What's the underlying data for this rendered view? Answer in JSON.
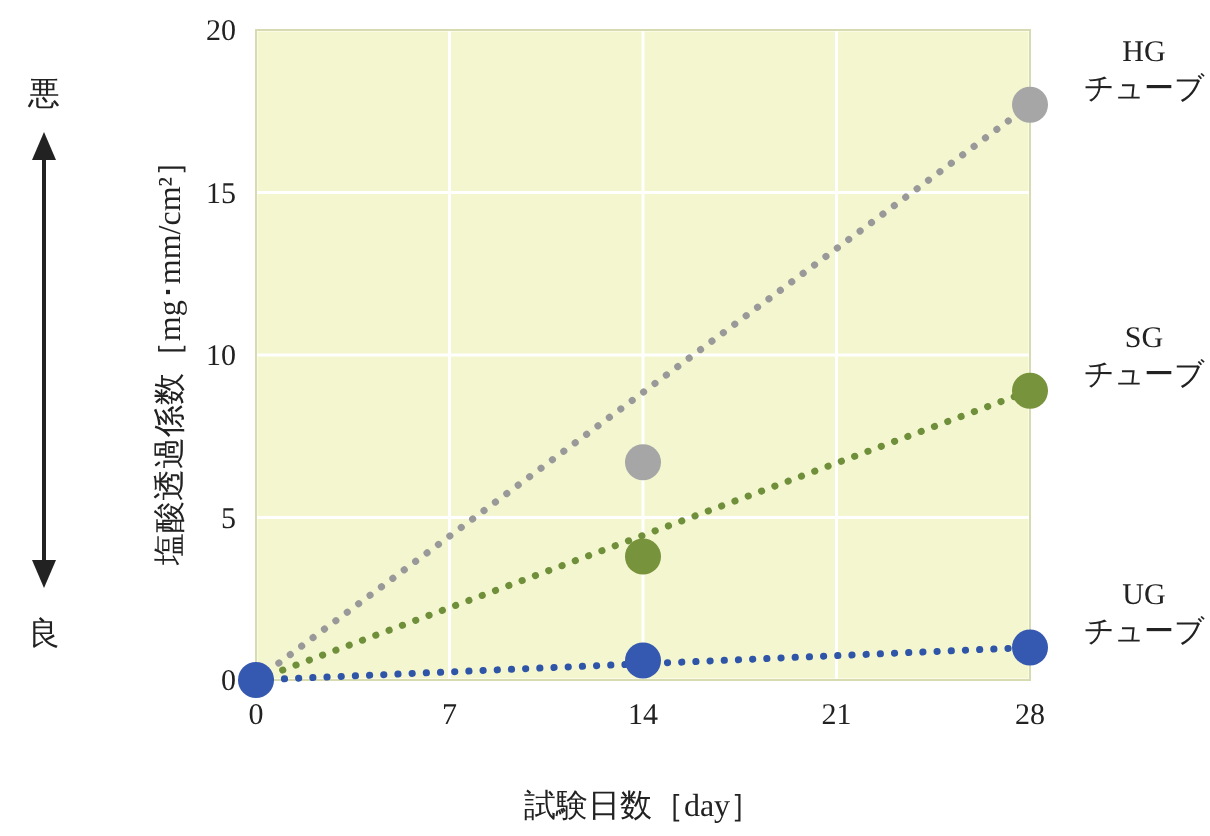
{
  "chart_data": {
    "type": "scatter",
    "xlabel": "試験日数［day］",
    "ylabel": "塩酸透過係数［mg･mm/cm²］",
    "xlim": [
      0,
      28
    ],
    "ylim": [
      0,
      20
    ],
    "xticks": [
      0,
      7,
      14,
      21,
      28
    ],
    "yticks": [
      0,
      5,
      10,
      15,
      20
    ],
    "grid": true,
    "annotations": [
      "悪",
      "良"
    ],
    "series": [
      {
        "type": "line",
        "line_style": "dotted",
        "color": "#999999",
        "x": [
          0,
          28
        ],
        "values": [
          0,
          17.7
        ]
      },
      {
        "type": "line",
        "line_style": "dotted",
        "color": "#6f8f3a",
        "x": [
          0,
          28
        ],
        "values": [
          0,
          8.9
        ]
      },
      {
        "type": "line",
        "line_style": "dotted",
        "color": "#2f55a8",
        "x": [
          0,
          28
        ],
        "values": [
          0,
          1.0
        ]
      },
      {
        "name": "HG\nチューブ",
        "marker": "circle",
        "color": "#a6a6a6",
        "x": [
          14,
          28
        ],
        "values": [
          6.7,
          17.7
        ]
      },
      {
        "name": "SG\nチューブ",
        "marker": "circle",
        "color": "#77933c",
        "x": [
          14,
          28
        ],
        "values": [
          3.8,
          8.9
        ]
      },
      {
        "name": "UG\nチューブ",
        "marker": "circle",
        "color": "#3558b0",
        "x": [
          0,
          14,
          28
        ],
        "values": [
          0,
          0.6,
          1.0
        ]
      }
    ]
  }
}
